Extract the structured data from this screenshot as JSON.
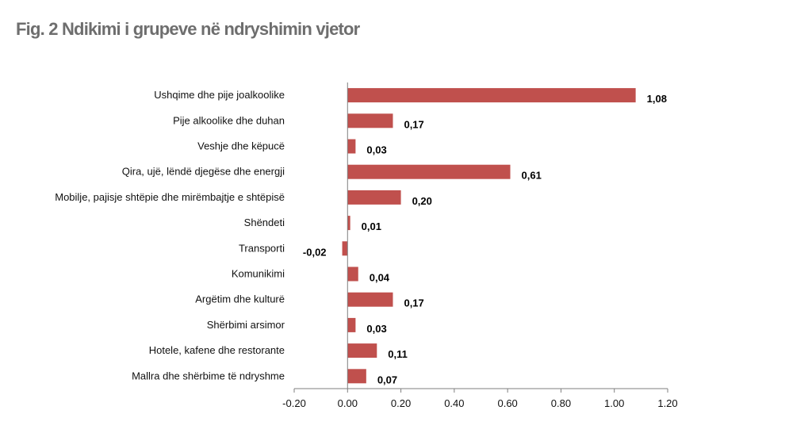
{
  "title": "Fig. 2 Ndikimi i grupeve në ndryshimin vjetor",
  "colors": {
    "bar": "#c0504d",
    "axis": "#7f7f7f",
    "title": "#6e6e6e"
  },
  "chart_data": {
    "type": "bar",
    "orientation": "horizontal",
    "title": "Fig. 2 Ndikimi i grupeve në ndryshimin vjetor",
    "xlabel": "",
    "ylabel": "",
    "xlim": [
      -0.2,
      1.2
    ],
    "x_ticks": [
      -0.2,
      0.0,
      0.2,
      0.4,
      0.6,
      0.8,
      1.0,
      1.2
    ],
    "x_tick_labels": [
      "-0.20",
      "0.00",
      "0.20",
      "0.40",
      "0.60",
      "0.80",
      "1.00",
      "1.20"
    ],
    "grid": false,
    "legend": "none",
    "categories": [
      "Ushqime dhe pije joalkoolike",
      "Pije alkoolike dhe duhan",
      "Veshje dhe këpucë",
      "Qira, ujë, lëndë djegëse dhe energji",
      "Mobilje, pajisje shtëpie dhe mirëmbajtje e shtëpisë",
      "Shëndeti",
      "Transporti",
      "Komunikimi",
      "Argëtim dhe kulturë",
      "Shërbimi arsimor",
      "Hotele, kafene dhe restorante",
      "Mallra dhe shërbime të ndryshme"
    ],
    "values": [
      1.08,
      0.17,
      0.03,
      0.61,
      0.2,
      0.01,
      -0.02,
      0.04,
      0.17,
      0.03,
      0.11,
      0.07
    ],
    "value_labels": [
      "1,08",
      "0,17",
      "0,03",
      "0,61",
      "0,20",
      "0,01",
      "-0,02",
      "0,04",
      "0,17",
      "0,03",
      "0,11",
      "0,07"
    ]
  }
}
